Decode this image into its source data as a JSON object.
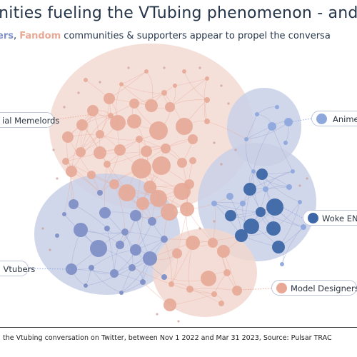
{
  "title": "unities fueling the VTubing phenomenon - and",
  "subtitle": {
    "part1": "ers",
    "part2": ", ",
    "part3": "Fandom",
    "part4": " communities & supporters appear to propel the conversa"
  },
  "labels": {
    "memelords": "ial Memelords",
    "anime": "Anime T",
    "woke": "Woke ENV",
    "vtubers": ": Vtubers",
    "model": "Model Designers"
  },
  "footer": "the Vtubing conversation on Twitter, between Nov 1 2022 and Mar 31 2023, Source: Pulsar TRAC",
  "colors": {
    "salmon_fill": "#e7a896",
    "salmon_cluster": "#f2d7cf",
    "blue_fill": "#7f8fc6",
    "dark_blue": "#3d67a6",
    "light_blue": "#8ea8dc",
    "lav_cluster": "#c9d0e6",
    "text": "#26364a"
  }
}
